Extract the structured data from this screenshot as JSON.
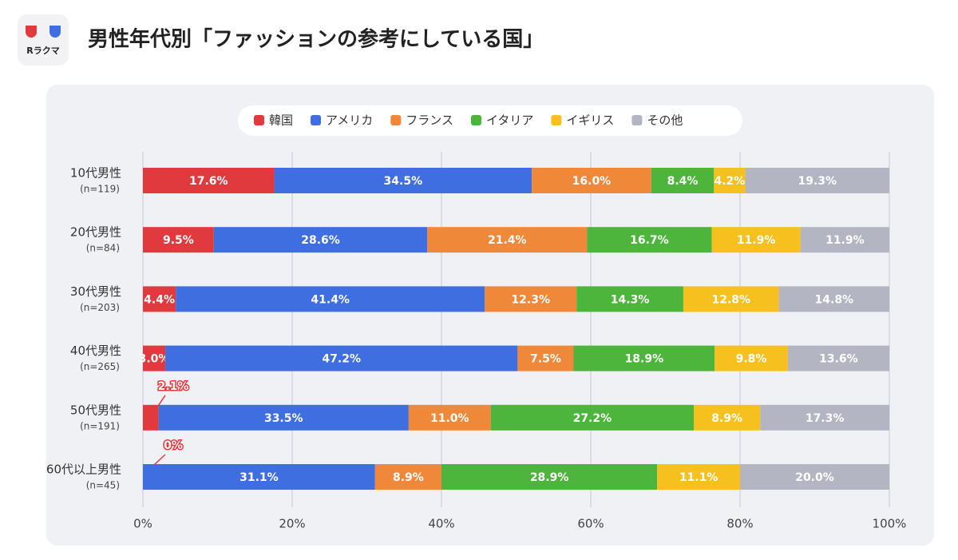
{
  "logo_text": "Rラクマ",
  "chart_data": {
    "type": "stacked-bar-horizontal",
    "title": "男性年代別「ファッションの参考にしている国」",
    "categories": [
      "10代男性",
      "20代男性",
      "30代男性",
      "40代男性",
      "50代男性",
      "60代以上男性"
    ],
    "sample_sizes": [
      "(n=119)",
      "(n=84)",
      "(n=203)",
      "(n=265)",
      "(n=191)",
      "(n=45)"
    ],
    "series": [
      {
        "name": "韓国",
        "color": "#e03a3e",
        "values": [
          17.6,
          9.5,
          4.4,
          3.0,
          2.1,
          0
        ],
        "value_labels": [
          "17.6%",
          "9.5%",
          "4.4%",
          "3.0%",
          "2.1%",
          "0%"
        ]
      },
      {
        "name": "アメリカ",
        "color": "#3e6ee0",
        "values": [
          34.5,
          28.6,
          41.4,
          47.2,
          33.5,
          31.1
        ],
        "value_labels": [
          "34.5%",
          "28.6%",
          "41.4%",
          "47.2%",
          "33.5%",
          "31.1%"
        ]
      },
      {
        "name": "フランス",
        "color": "#f0883a",
        "values": [
          16.0,
          21.4,
          12.3,
          7.5,
          11.0,
          8.9
        ],
        "value_labels": [
          "16.0%",
          "21.4%",
          "12.3%",
          "7.5%",
          "11.0%",
          "8.9%"
        ]
      },
      {
        "name": "イタリア",
        "color": "#4db53c",
        "values": [
          8.4,
          16.7,
          14.3,
          18.9,
          27.2,
          28.9
        ],
        "value_labels": [
          "8.4%",
          "16.7%",
          "14.3%",
          "18.9%",
          "27.2%",
          "28.9%"
        ]
      },
      {
        "name": "イギリス",
        "color": "#f6c01e",
        "values": [
          4.2,
          11.9,
          12.8,
          9.8,
          8.9,
          11.1
        ],
        "value_labels": [
          "4.2%",
          "11.9%",
          "12.8%",
          "9.8%",
          "8.9%",
          "11.1%"
        ]
      },
      {
        "name": "その他",
        "color": "#b3b5c2",
        "values": [
          19.3,
          11.9,
          14.8,
          13.6,
          17.3,
          20.0
        ],
        "value_labels": [
          "19.3%",
          "11.9%",
          "14.8%",
          "13.6%",
          "17.3%",
          "20.0%"
        ]
      }
    ],
    "xlim": [
      0,
      100
    ],
    "xticks": [
      {
        "value": 0,
        "label": "0%"
      },
      {
        "value": 20,
        "label": "20%"
      },
      {
        "value": 40,
        "label": "40%"
      },
      {
        "value": 60,
        "label": "60%"
      },
      {
        "value": 80,
        "label": "80%"
      },
      {
        "value": 100,
        "label": "100%"
      }
    ],
    "grid": true,
    "legend": "top"
  }
}
